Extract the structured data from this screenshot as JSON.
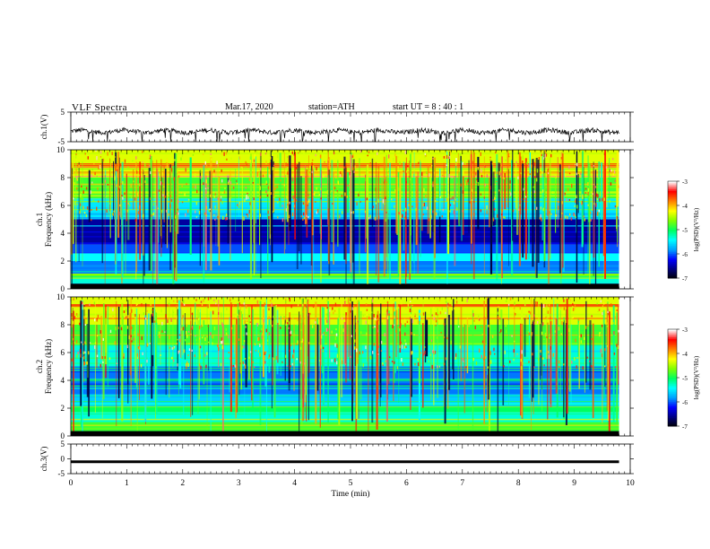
{
  "header": {
    "title": "VLF  Spectra",
    "date": "Mar.17, 2020",
    "station": "station=ATH",
    "start": "start  UT  =   8 : 40 : 1"
  },
  "colors": {
    "waveform": "#000000",
    "colormap": [
      "#000000",
      "#000080",
      "#0000ff",
      "#00a0ff",
      "#00ffff",
      "#00ff60",
      "#80ff00",
      "#ffff00",
      "#ff8000",
      "#ff0000",
      "#ffffff"
    ]
  },
  "chart_data": [
    {
      "type": "line",
      "name": "ch1-waveform",
      "ylabel": "ch.1(V)",
      "ylim": [
        -5,
        5
      ],
      "yticks": [
        "5",
        "-5"
      ],
      "xlim": [
        0,
        10
      ],
      "trace_range_min": [
        0,
        9.8
      ],
      "baseline_v": -1.5
    },
    {
      "type": "heatmap",
      "name": "ch1-spectrogram",
      "ylabel": "ch.1\nFrequency  (kHz)",
      "ylim": [
        0,
        10
      ],
      "yticks": [
        "0",
        "2",
        "4",
        "6",
        "8",
        "10"
      ],
      "xlim": [
        0,
        10
      ],
      "data_range_min": [
        0,
        9.8
      ],
      "colorbar": {
        "label": "log(PSD)(V²/Hz)",
        "range": [
          -7,
          -3
        ],
        "ticks": [
          "-3",
          "-4",
          "-5",
          "-6",
          "-7"
        ]
      },
      "bands_khz_to_logpsd": [
        [
          0.0,
          0.4,
          -6.9
        ],
        [
          0.4,
          0.9,
          -5.3
        ],
        [
          0.9,
          1.1,
          -4.6
        ],
        [
          1.1,
          2.0,
          -5.9
        ],
        [
          2.0,
          2.6,
          -5.4
        ],
        [
          2.6,
          3.2,
          -6.0
        ],
        [
          3.2,
          5.0,
          -6.5
        ],
        [
          5.0,
          6.5,
          -5.5
        ],
        [
          6.5,
          8.0,
          -4.8
        ],
        [
          8.0,
          10.0,
          -4.3
        ]
      ]
    },
    {
      "type": "heatmap",
      "name": "ch2-spectrogram",
      "ylabel": "ch.2\nFrequency  (kHz)",
      "ylim": [
        0,
        10
      ],
      "yticks": [
        "0",
        "2",
        "4",
        "6",
        "8",
        "10"
      ],
      "xlim": [
        0,
        10
      ],
      "data_range_min": [
        0,
        9.8
      ],
      "colorbar": {
        "label": "log(PSD)(V²/Hz)",
        "range": [
          -7,
          -3
        ],
        "ticks": [
          "-3",
          "-4",
          "-5",
          "-6",
          "-7"
        ]
      },
      "bands_khz_to_logpsd": [
        [
          0.0,
          0.3,
          -6.9
        ],
        [
          0.3,
          1.0,
          -4.8
        ],
        [
          1.0,
          1.7,
          -5.3
        ],
        [
          1.7,
          2.1,
          -5.0
        ],
        [
          2.1,
          3.0,
          -5.6
        ],
        [
          3.0,
          5.0,
          -5.9
        ],
        [
          5.0,
          6.5,
          -5.3
        ],
        [
          6.5,
          8.0,
          -4.8
        ],
        [
          8.0,
          10.0,
          -4.3
        ]
      ]
    },
    {
      "type": "line",
      "name": "ch3-waveform",
      "ylabel": "ch.3(V)",
      "ylim": [
        -5,
        5
      ],
      "yticks": [
        "5",
        "0",
        "-5"
      ],
      "xlim": [
        0,
        10
      ],
      "trace_range_min": [
        0,
        9.8
      ],
      "constant_v": -1.0,
      "xlabel": "Time  (min)",
      "xticks": [
        "0",
        "1",
        "2",
        "3",
        "4",
        "5",
        "6",
        "7",
        "8",
        "9",
        "10"
      ]
    }
  ]
}
